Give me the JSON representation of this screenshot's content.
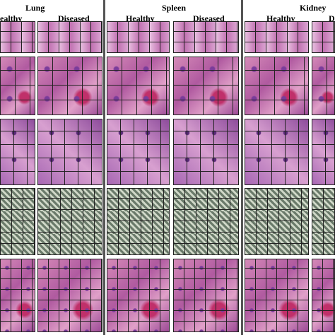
{
  "panels": [
    {
      "title": "Lung",
      "groups": [
        "ealthy",
        "Diseased"
      ]
    },
    {
      "title": "Spleen",
      "groups": [
        "Healthy",
        "Diseased"
      ]
    },
    {
      "title": "Kidney",
      "groups": [
        "Healthy",
        "D"
      ]
    }
  ]
}
